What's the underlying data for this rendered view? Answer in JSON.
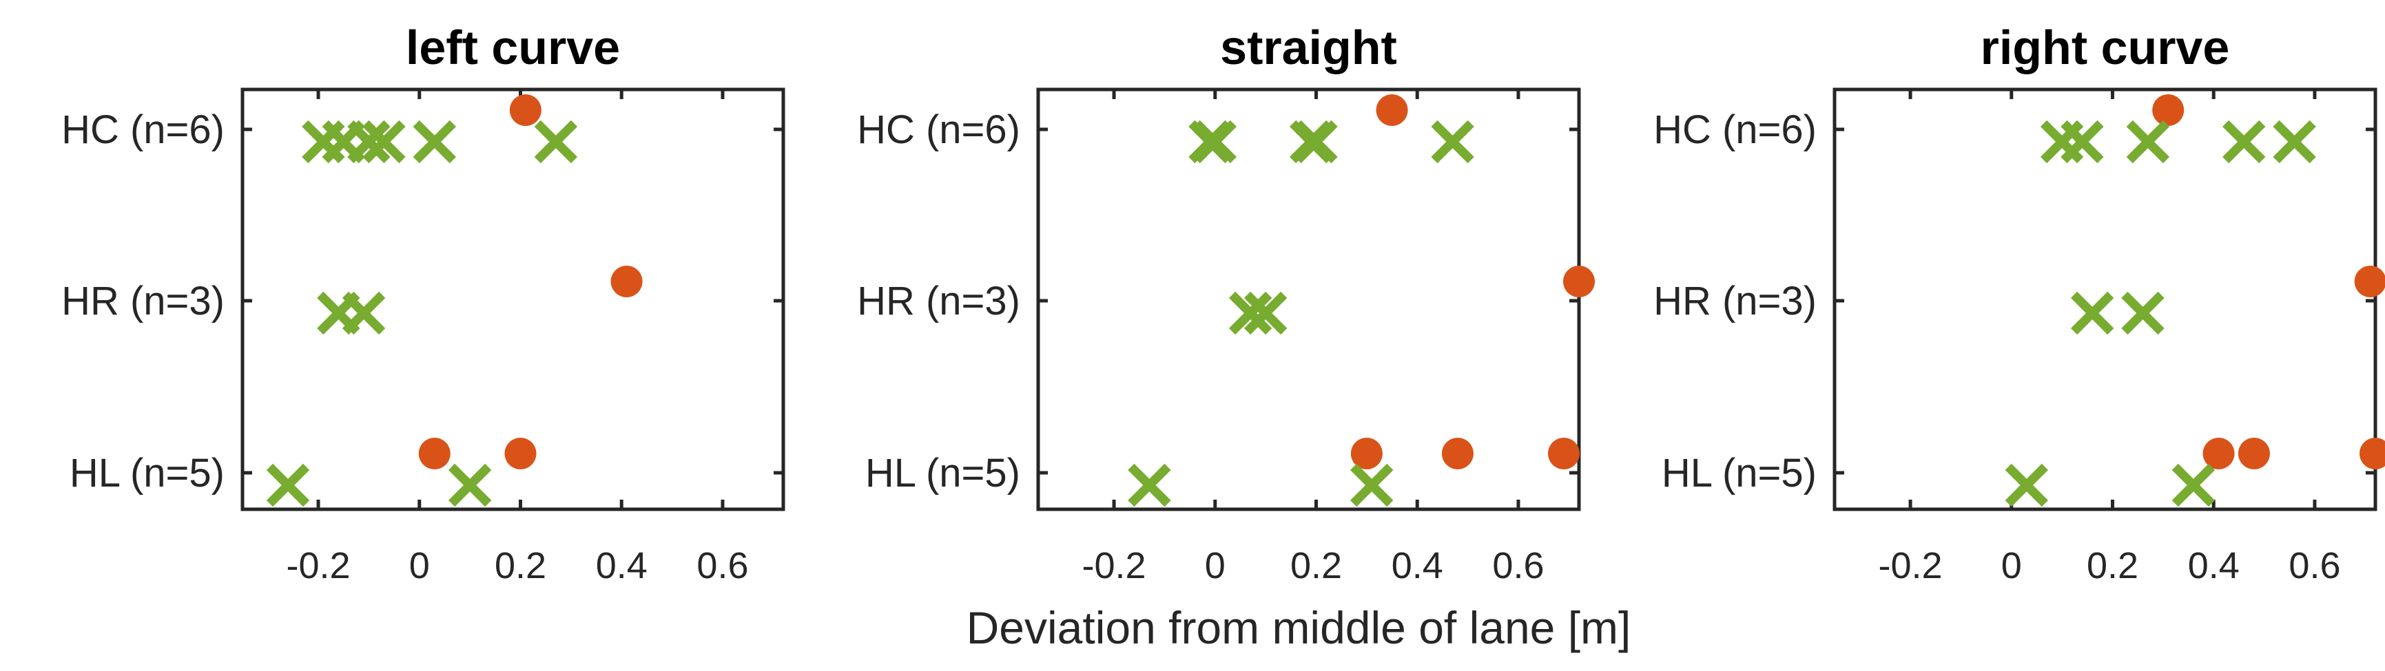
{
  "chart_data": [
    {
      "type": "scatter",
      "title": "left curve",
      "categories": [
        "HC (n=6)",
        "HR (n=3)",
        "HL (n=5)"
      ],
      "xlim": [
        -0.35,
        0.72
      ],
      "xticks": [
        -0.2,
        0,
        0.2,
        0.4,
        0.6
      ],
      "xtick_labels": [
        "-0.2",
        "0",
        "0.2",
        "0.4",
        "0.6"
      ],
      "series": [
        {
          "name": "circle",
          "marker": "circle",
          "color": "#D95319",
          "points": [
            {
              "category": "HC (n=6)",
              "x": 0.21
            },
            {
              "category": "HR (n=3)",
              "x": 0.41
            },
            {
              "category": "HL (n=5)",
              "x": 0.03
            },
            {
              "category": "HL (n=5)",
              "x": 0.2
            }
          ]
        },
        {
          "name": "cross",
          "marker": "x",
          "color": "#77AC30",
          "points": [
            {
              "category": "HC (n=6)",
              "x": -0.19
            },
            {
              "category": "HC (n=6)",
              "x": -0.15
            },
            {
              "category": "HC (n=6)",
              "x": -0.1
            },
            {
              "category": "HC (n=6)",
              "x": -0.07
            },
            {
              "category": "HC (n=6)",
              "x": 0.03
            },
            {
              "category": "HC (n=6)",
              "x": 0.27
            },
            {
              "category": "HR (n=3)",
              "x": -0.16
            },
            {
              "category": "HR (n=3)",
              "x": -0.11
            },
            {
              "category": "HL (n=5)",
              "x": -0.26
            },
            {
              "category": "HL (n=5)",
              "x": 0.1
            }
          ]
        }
      ]
    },
    {
      "type": "scatter",
      "title": "straight",
      "categories": [
        "HC (n=6)",
        "HR (n=3)",
        "HL (n=5)"
      ],
      "xlim": [
        -0.35,
        0.72
      ],
      "xticks": [
        -0.2,
        0,
        0.2,
        0.4,
        0.6
      ],
      "xtick_labels": [
        "-0.2",
        "0",
        "0.2",
        "0.4",
        "0.6"
      ],
      "series": [
        {
          "name": "circle",
          "marker": "circle",
          "color": "#D95319",
          "points": [
            {
              "category": "HC (n=6)",
              "x": 0.35
            },
            {
              "category": "HR (n=3)",
              "x": 0.72
            },
            {
              "category": "HL (n=5)",
              "x": 0.3
            },
            {
              "category": "HL (n=5)",
              "x": 0.48
            },
            {
              "category": "HL (n=5)",
              "x": 0.69
            }
          ]
        },
        {
          "name": "cross",
          "marker": "x",
          "color": "#77AC30",
          "points": [
            {
              "category": "HC (n=6)",
              "x": -0.01
            },
            {
              "category": "HC (n=6)",
              "x": 0.0
            },
            {
              "category": "HC (n=6)",
              "x": 0.19
            },
            {
              "category": "HC (n=6)",
              "x": 0.2
            },
            {
              "category": "HC (n=6)",
              "x": 0.47
            },
            {
              "category": "HR (n=3)",
              "x": 0.07
            },
            {
              "category": "HR (n=3)",
              "x": 0.1
            },
            {
              "category": "HL (n=5)",
              "x": -0.13
            },
            {
              "category": "HL (n=5)",
              "x": 0.31
            }
          ]
        }
      ]
    },
    {
      "type": "scatter",
      "title": "right curve",
      "categories": [
        "HC (n=6)",
        "HR (n=3)",
        "HL (n=5)"
      ],
      "xlim": [
        -0.35,
        0.72
      ],
      "xticks": [
        -0.2,
        0,
        0.2,
        0.4,
        0.6
      ],
      "xtick_labels": [
        "-0.2",
        "0",
        "0.2",
        "0.4",
        "0.6"
      ],
      "series": [
        {
          "name": "circle",
          "marker": "circle",
          "color": "#D95319",
          "points": [
            {
              "category": "HC (n=6)",
              "x": 0.31
            },
            {
              "category": "HR (n=3)",
              "x": 0.71
            },
            {
              "category": "HL (n=5)",
              "x": 0.41
            },
            {
              "category": "HL (n=5)",
              "x": 0.48
            },
            {
              "category": "HL (n=5)",
              "x": 0.72
            }
          ]
        },
        {
          "name": "cross",
          "marker": "x",
          "color": "#77AC30",
          "points": [
            {
              "category": "HC (n=6)",
              "x": 0.1
            },
            {
              "category": "HC (n=6)",
              "x": 0.14
            },
            {
              "category": "HC (n=6)",
              "x": 0.27
            },
            {
              "category": "HC (n=6)",
              "x": 0.46
            },
            {
              "category": "HC (n=6)",
              "x": 0.56
            },
            {
              "category": "HR (n=3)",
              "x": 0.16
            },
            {
              "category": "HR (n=3)",
              "x": 0.26
            },
            {
              "category": "HL (n=5)",
              "x": 0.03
            },
            {
              "category": "HL (n=5)",
              "x": 0.36
            }
          ]
        }
      ]
    }
  ],
  "xlabel": "Deviation from middle of lane [m]"
}
